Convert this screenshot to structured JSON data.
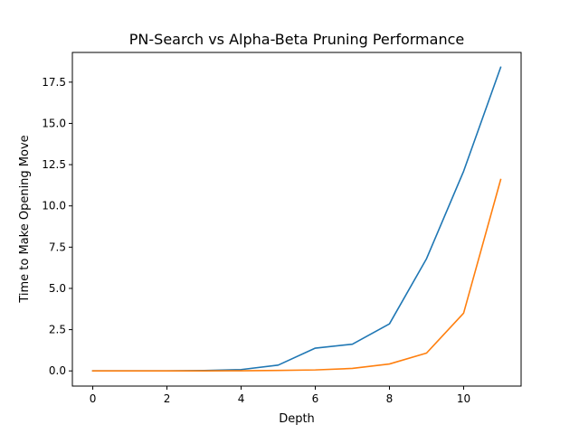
{
  "chart_data": {
    "type": "line",
    "title": "PN-Search vs Alpha-Beta Pruning Performance",
    "xlabel": "Depth",
    "ylabel": "Time to Make Opening Move",
    "xlim": [
      -0.55,
      11.55
    ],
    "ylim": [
      -0.92,
      19.3
    ],
    "xticks": [
      0,
      2,
      4,
      6,
      8,
      10
    ],
    "yticks": [
      0.0,
      2.5,
      5.0,
      7.5,
      10.0,
      12.5,
      15.0,
      17.5
    ],
    "ytick_labels": [
      "0.0",
      "2.5",
      "5.0",
      "7.5",
      "10.0",
      "12.5",
      "15.0",
      "17.5"
    ],
    "grid": false,
    "x": [
      0,
      1,
      2,
      3,
      4,
      5,
      6,
      7,
      8,
      9,
      10,
      11
    ],
    "series": [
      {
        "color": "#1f77b4",
        "values": [
          0.0,
          0.0,
          0.0,
          0.02,
          0.08,
          0.35,
          1.38,
          1.62,
          2.85,
          6.8,
          12.1,
          18.4
        ]
      },
      {
        "color": "#ff7f0e",
        "values": [
          0.0,
          0.0,
          0.0,
          0.0,
          0.01,
          0.03,
          0.06,
          0.15,
          0.42,
          1.08,
          3.5,
          11.6
        ]
      }
    ]
  }
}
